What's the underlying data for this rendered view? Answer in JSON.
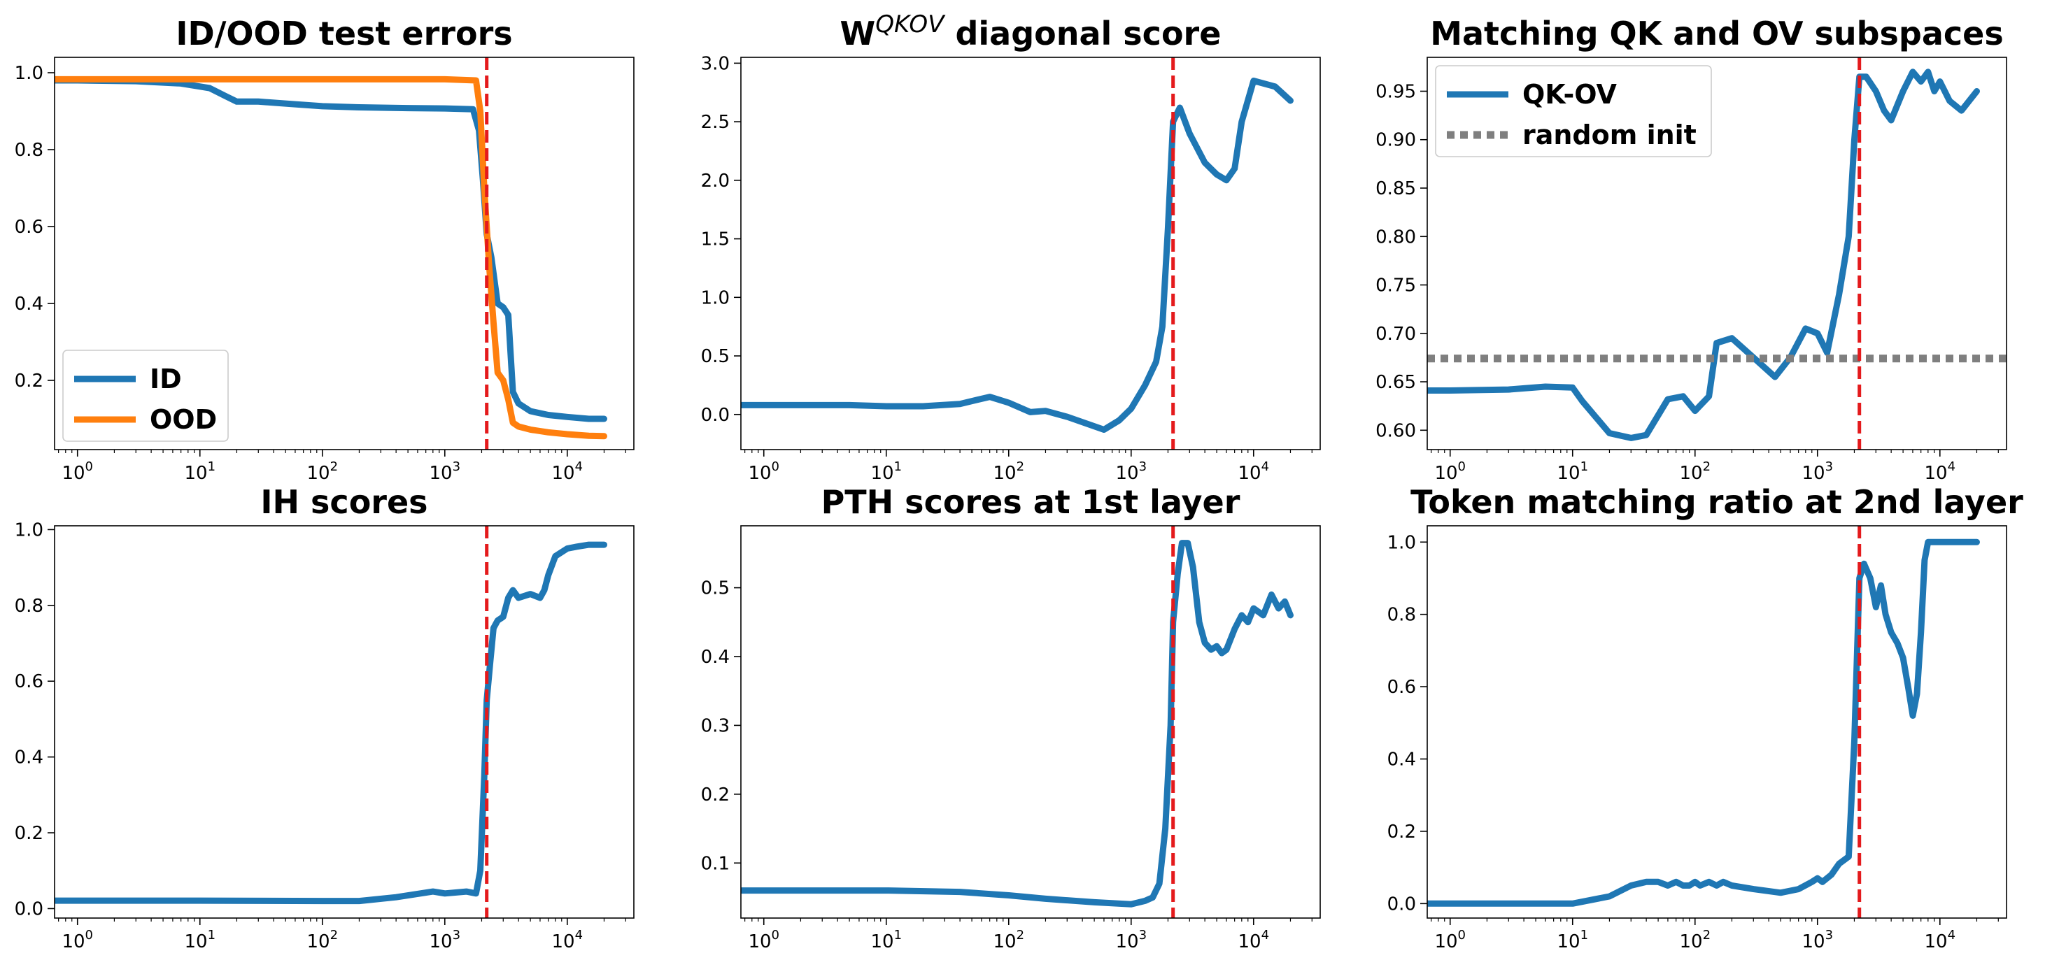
{
  "figure": {
    "colors": {
      "id": "#1f77b4",
      "ood": "#ff7f0e",
      "transition": "#e41a1c",
      "random": "#7f7f7f"
    }
  },
  "chart_data": [
    {
      "type": "line",
      "title": "ID/OOD test errors",
      "xscale": "log",
      "xlim": [
        0.65,
        35000
      ],
      "ylim": [
        0.02,
        1.04
      ],
      "xticks": [
        1,
        10,
        100,
        1000,
        10000
      ],
      "xtick_labels": [
        "10",
        "10",
        "10",
        "10",
        "10"
      ],
      "xtick_exps": [
        "0",
        "1",
        "2",
        "3",
        "4"
      ],
      "yticks": [
        0.2,
        0.4,
        0.6,
        0.8,
        1.0
      ],
      "ytick_labels": [
        "0.2",
        "0.4",
        "0.6",
        "0.8",
        "1.0"
      ],
      "legend": "lower-left",
      "vline": 2200,
      "series": [
        {
          "name": "ID",
          "color": "#1f77b4",
          "x": [
            0.65,
            1,
            3,
            7,
            12,
            16,
            20,
            30,
            40,
            60,
            100,
            200,
            500,
            1000,
            1700,
            1900,
            2050,
            2200,
            2400,
            2700,
            3000,
            3300,
            3600,
            4000,
            5000,
            7000,
            10000,
            15000,
            20000
          ],
          "y": [
            0.98,
            0.98,
            0.978,
            0.972,
            0.96,
            0.94,
            0.925,
            0.925,
            0.922,
            0.918,
            0.913,
            0.91,
            0.908,
            0.907,
            0.905,
            0.85,
            0.72,
            0.58,
            0.52,
            0.4,
            0.39,
            0.37,
            0.17,
            0.14,
            0.12,
            0.11,
            0.105,
            0.1,
            0.1
          ]
        },
        {
          "name": "OOD",
          "color": "#ff7f0e",
          "x": [
            0.65,
            1,
            10,
            100,
            1000,
            1800,
            1950,
            2100,
            2300,
            2500,
            2700,
            3000,
            3300,
            3600,
            4000,
            5000,
            7000,
            10000,
            15000,
            20000
          ],
          "y": [
            0.983,
            0.983,
            0.983,
            0.983,
            0.983,
            0.98,
            0.9,
            0.7,
            0.5,
            0.35,
            0.22,
            0.2,
            0.15,
            0.09,
            0.08,
            0.072,
            0.065,
            0.06,
            0.056,
            0.055
          ]
        }
      ]
    },
    {
      "type": "line",
      "title": "W",
      "title_sup": "QKOV",
      "title_rest": " diagonal score",
      "xscale": "log",
      "xlim": [
        0.65,
        35000
      ],
      "ylim": [
        -0.3,
        3.05
      ],
      "xticks": [
        1,
        10,
        100,
        1000,
        10000
      ],
      "xtick_labels": [
        "10",
        "10",
        "10",
        "10",
        "10"
      ],
      "xtick_exps": [
        "0",
        "1",
        "2",
        "3",
        "4"
      ],
      "yticks": [
        0.0,
        0.5,
        1.0,
        1.5,
        2.0,
        2.5,
        3.0
      ],
      "ytick_labels": [
        "0.0",
        "0.5",
        "1.0",
        "1.5",
        "2.0",
        "2.5",
        "3.0"
      ],
      "vline": 2200,
      "series": [
        {
          "color": "#1f77b4",
          "x": [
            0.65,
            1,
            5,
            10,
            20,
            40,
            70,
            100,
            150,
            200,
            300,
            600,
            800,
            1000,
            1300,
            1600,
            1800,
            2000,
            2200,
            2500,
            3000,
            4000,
            5000,
            6000,
            7000,
            8000,
            10000,
            15000,
            20000
          ],
          "y": [
            0.08,
            0.08,
            0.08,
            0.07,
            0.07,
            0.09,
            0.15,
            0.1,
            0.02,
            0.03,
            -0.02,
            -0.13,
            -0.05,
            0.05,
            0.25,
            0.45,
            0.75,
            1.6,
            2.5,
            2.62,
            2.4,
            2.15,
            2.05,
            2.0,
            2.1,
            2.5,
            2.85,
            2.8,
            2.68
          ]
        }
      ]
    },
    {
      "type": "line",
      "title": "Matching QK and OV subspaces",
      "xscale": "log",
      "xlim": [
        0.65,
        35000
      ],
      "ylim": [
        0.58,
        0.985
      ],
      "xticks": [
        1,
        10,
        100,
        1000,
        10000
      ],
      "xtick_labels": [
        "10",
        "10",
        "10",
        "10",
        "10"
      ],
      "xtick_exps": [
        "0",
        "1",
        "2",
        "3",
        "4"
      ],
      "yticks": [
        0.6,
        0.65,
        0.7,
        0.75,
        0.8,
        0.85,
        0.9,
        0.95
      ],
      "ytick_labels": [
        "0.60",
        "0.65",
        "0.70",
        "0.75",
        "0.80",
        "0.85",
        "0.90",
        "0.95"
      ],
      "legend": "upper-left",
      "vline": 2200,
      "series": [
        {
          "name": "QK-OV",
          "color": "#1f77b4",
          "x": [
            0.65,
            1,
            3,
            6,
            10,
            12,
            20,
            30,
            40,
            60,
            80,
            100,
            130,
            150,
            200,
            300,
            450,
            600,
            800,
            1000,
            1200,
            1500,
            1800,
            2000,
            2200,
            2500,
            3000,
            3500,
            4000,
            5000,
            6000,
            7000,
            8000,
            9000,
            10000,
            12000,
            15000,
            20000
          ],
          "y": [
            0.641,
            0.641,
            0.642,
            0.645,
            0.644,
            0.63,
            0.597,
            0.592,
            0.595,
            0.632,
            0.635,
            0.62,
            0.635,
            0.69,
            0.695,
            0.675,
            0.655,
            0.675,
            0.705,
            0.7,
            0.68,
            0.74,
            0.8,
            0.9,
            0.965,
            0.965,
            0.95,
            0.93,
            0.92,
            0.95,
            0.97,
            0.96,
            0.97,
            0.95,
            0.96,
            0.94,
            0.93,
            0.95
          ]
        },
        {
          "name": "random init",
          "color": "#7f7f7f",
          "dashed": true,
          "x": [
            0.65,
            35000
          ],
          "y": [
            0.674,
            0.674
          ]
        }
      ]
    },
    {
      "type": "line",
      "title": "IH scores",
      "xscale": "log",
      "xlim": [
        0.65,
        35000
      ],
      "ylim": [
        -0.025,
        1.01
      ],
      "xticks": [
        1,
        10,
        100,
        1000,
        10000
      ],
      "xtick_labels": [
        "10",
        "10",
        "10",
        "10",
        "10"
      ],
      "xtick_exps": [
        "0",
        "1",
        "2",
        "3",
        "4"
      ],
      "yticks": [
        0.0,
        0.2,
        0.4,
        0.6,
        0.8,
        1.0
      ],
      "ytick_labels": [
        "0.0",
        "0.2",
        "0.4",
        "0.6",
        "0.8",
        "1.0"
      ],
      "vline": 2200,
      "series": [
        {
          "color": "#1f77b4",
          "x": [
            0.65,
            1,
            10,
            100,
            200,
            400,
            800,
            1000,
            1500,
            1800,
            1950,
            2100,
            2200,
            2350,
            2500,
            2700,
            3000,
            3300,
            3600,
            4000,
            5000,
            6000,
            6500,
            7000,
            8000,
            10000,
            12000,
            15000,
            20000
          ],
          "y": [
            0.021,
            0.021,
            0.021,
            0.02,
            0.02,
            0.03,
            0.045,
            0.04,
            0.045,
            0.04,
            0.1,
            0.35,
            0.55,
            0.65,
            0.74,
            0.76,
            0.77,
            0.82,
            0.84,
            0.82,
            0.83,
            0.82,
            0.84,
            0.88,
            0.93,
            0.95,
            0.955,
            0.96,
            0.96
          ]
        }
      ]
    },
    {
      "type": "line",
      "title": "PTH scores at 1st layer",
      "xscale": "log",
      "xlim": [
        0.65,
        35000
      ],
      "ylim": [
        0.02,
        0.59
      ],
      "xticks": [
        1,
        10,
        100,
        1000,
        10000
      ],
      "xtick_labels": [
        "10",
        "10",
        "10",
        "10",
        "10"
      ],
      "xtick_exps": [
        "0",
        "1",
        "2",
        "3",
        "4"
      ],
      "yticks": [
        0.1,
        0.2,
        0.3,
        0.4,
        0.5
      ],
      "ytick_labels": [
        "0.1",
        "0.2",
        "0.3",
        "0.4",
        "0.5"
      ],
      "vline": 2200,
      "series": [
        {
          "color": "#1f77b4",
          "x": [
            0.65,
            1,
            10,
            40,
            100,
            200,
            500,
            1000,
            1300,
            1500,
            1700,
            1900,
            2100,
            2200,
            2400,
            2600,
            2900,
            3200,
            3600,
            4000,
            4500,
            5000,
            5500,
            6000,
            7000,
            8000,
            9000,
            10000,
            12000,
            14000,
            16000,
            18000,
            20000
          ],
          "y": [
            0.06,
            0.06,
            0.06,
            0.058,
            0.053,
            0.048,
            0.043,
            0.04,
            0.045,
            0.05,
            0.07,
            0.15,
            0.3,
            0.45,
            0.52,
            0.565,
            0.565,
            0.53,
            0.45,
            0.42,
            0.41,
            0.415,
            0.405,
            0.41,
            0.44,
            0.46,
            0.45,
            0.47,
            0.46,
            0.49,
            0.47,
            0.48,
            0.46
          ]
        }
      ]
    },
    {
      "type": "line",
      "title": "Token matching ratio at 2nd layer",
      "xscale": "log",
      "xlim": [
        0.65,
        35000
      ],
      "ylim": [
        -0.04,
        1.045
      ],
      "xticks": [
        1,
        10,
        100,
        1000,
        10000
      ],
      "xtick_labels": [
        "10",
        "10",
        "10",
        "10",
        "10"
      ],
      "xtick_exps": [
        "0",
        "1",
        "2",
        "3",
        "4"
      ],
      "yticks": [
        0.0,
        0.2,
        0.4,
        0.6,
        0.8,
        1.0
      ],
      "ytick_labels": [
        "0.0",
        "0.2",
        "0.4",
        "0.6",
        "0.8",
        "1.0"
      ],
      "vline": 2200,
      "series": [
        {
          "color": "#1f77b4",
          "x": [
            0.65,
            1,
            5,
            10,
            20,
            30,
            40,
            50,
            60,
            70,
            80,
            90,
            100,
            110,
            130,
            150,
            170,
            200,
            300,
            500,
            700,
            900,
            1000,
            1100,
            1300,
            1500,
            1800,
            2000,
            2200,
            2400,
            2700,
            3000,
            3300,
            3600,
            4000,
            4500,
            5000,
            5500,
            6000,
            6500,
            7000,
            7500,
            8000,
            10000,
            15000,
            20000
          ],
          "y": [
            0.0,
            0.0,
            0.0,
            0.0,
            0.02,
            0.05,
            0.06,
            0.06,
            0.05,
            0.06,
            0.05,
            0.05,
            0.06,
            0.05,
            0.06,
            0.05,
            0.06,
            0.05,
            0.04,
            0.03,
            0.04,
            0.06,
            0.07,
            0.06,
            0.08,
            0.11,
            0.13,
            0.45,
            0.9,
            0.94,
            0.9,
            0.82,
            0.88,
            0.8,
            0.75,
            0.72,
            0.68,
            0.6,
            0.52,
            0.58,
            0.75,
            0.95,
            1.0,
            1.0,
            1.0,
            1.0
          ]
        }
      ]
    }
  ]
}
